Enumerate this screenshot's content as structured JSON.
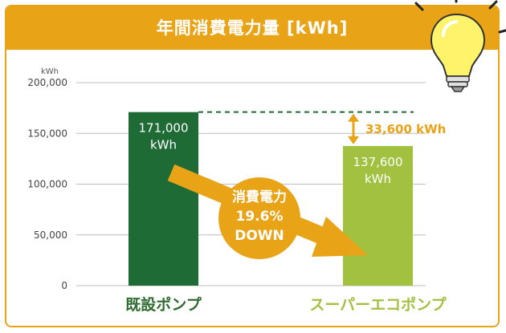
{
  "header": {
    "title": "年間消費電力量 [kWh]"
  },
  "colors": {
    "accent": "#e8a317",
    "existing": "#1e6b36",
    "eco": "#a2c140",
    "text_dark": "#2e6b2f"
  },
  "icon": "lightbulb-icon",
  "chart_data": {
    "type": "bar",
    "title": "年間消費電力量 [kWh]",
    "unit_label": "kWh",
    "categories": [
      "既設ポンプ",
      "スーパーエコポンプ"
    ],
    "values": [
      171000,
      137600
    ],
    "data_labels": [
      {
        "value": "171,000",
        "unit": "kWh"
      },
      {
        "value": "137,600",
        "unit": "kWh"
      }
    ],
    "yticks": [
      "0",
      "50,000",
      "100,000",
      "150,000",
      "200,000"
    ],
    "ytick_values": [
      0,
      50000,
      100000,
      150000,
      200000
    ],
    "ylim": [
      0,
      200000
    ],
    "grid": true,
    "difference": {
      "label": "33,600 kWh",
      "value": 33600
    },
    "annotation": {
      "lines": [
        "消費電力",
        "19.6%",
        "DOWN"
      ]
    }
  }
}
